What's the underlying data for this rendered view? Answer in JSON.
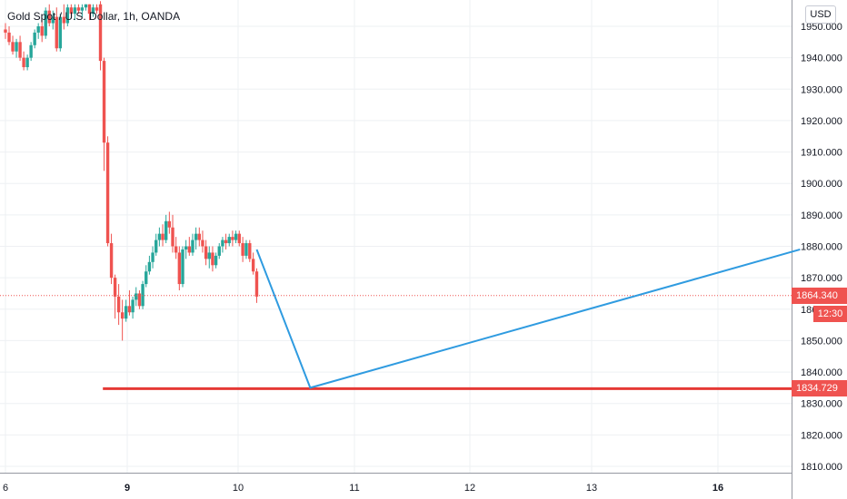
{
  "header": {
    "title": "Gold Spot / U.S. Dollar, 1h, OANDA",
    "currency": "USD"
  },
  "badges": {
    "current_price": "1864.340",
    "countdown": "12:30",
    "support_price": "1834.729"
  },
  "colors": {
    "up": "#26a69a",
    "down": "#ef5350",
    "trend_line": "#2f9be0",
    "support_line": "#e53935",
    "grid": "#eef0f3"
  },
  "chart_data": {
    "type": "candlestick",
    "symbol": "XAUUSD",
    "timeframe": "1h",
    "ylim": [
      1807,
      1958
    ],
    "y_ticks": [
      1810,
      1820,
      1830,
      1840,
      1850,
      1860,
      1870,
      1880,
      1890,
      1900,
      1910,
      1920,
      1930,
      1940,
      1950
    ],
    "x_ticks": [
      {
        "label": "6",
        "day": 0,
        "bold": false
      },
      {
        "label": "9",
        "day": 1,
        "bold": true
      },
      {
        "label": "10",
        "day": 2,
        "bold": false
      },
      {
        "label": "11",
        "day": 3,
        "bold": false
      },
      {
        "label": "12",
        "day": 4,
        "bold": false
      },
      {
        "label": "13",
        "day": 5,
        "bold": false
      },
      {
        "label": "16",
        "day": 6,
        "bold": true
      }
    ],
    "xlim_days": [
      -0.05,
      6.65
    ],
    "current_price": 1864.34,
    "candles": [
      [
        0.0,
        1949,
        1951,
        1946,
        1948
      ],
      [
        0.03,
        1948,
        1950,
        1944,
        1945
      ],
      [
        0.06,
        1945,
        1947,
        1941,
        1942
      ],
      [
        0.09,
        1942,
        1946,
        1940,
        1945
      ],
      [
        0.12,
        1945,
        1947,
        1939,
        1940
      ],
      [
        0.15,
        1940,
        1942,
        1936,
        1937
      ],
      [
        0.18,
        1937,
        1941,
        1936,
        1940
      ],
      [
        0.21,
        1940,
        1945,
        1939,
        1944
      ],
      [
        0.24,
        1944,
        1949,
        1943,
        1948
      ],
      [
        0.27,
        1948,
        1951,
        1946,
        1950
      ],
      [
        0.3,
        1950,
        1952,
        1945,
        1947
      ],
      [
        0.33,
        1947,
        1956,
        1946,
        1955
      ],
      [
        0.36,
        1955,
        1957,
        1950,
        1951
      ],
      [
        0.39,
        1951,
        1955,
        1949,
        1953
      ],
      [
        0.42,
        1953,
        1956,
        1942,
        1943
      ],
      [
        0.45,
        1943,
        1954,
        1942,
        1953
      ],
      [
        0.48,
        1953,
        1957,
        1949,
        1951
      ],
      [
        0.51,
        1951,
        1957,
        1950,
        1956
      ],
      [
        0.54,
        1956,
        1957,
        1953,
        1954
      ],
      [
        0.57,
        1954,
        1957,
        1952,
        1956
      ],
      [
        0.6,
        1956,
        1957,
        1954,
        1955
      ],
      [
        0.63,
        1955,
        1957,
        1953,
        1956
      ],
      [
        0.66,
        1956,
        1957,
        1955,
        1957
      ],
      [
        0.69,
        1957,
        1957,
        1952,
        1954
      ],
      [
        0.72,
        1954,
        1957,
        1953,
        1956
      ],
      [
        0.75,
        1956,
        1957,
        1954,
        1955
      ],
      [
        0.78,
        1957,
        1958,
        1936,
        1939
      ],
      [
        0.81,
        1939,
        1940,
        1904,
        1913
      ],
      [
        0.84,
        1913,
        1915,
        1880,
        1881
      ],
      [
        0.87,
        1881,
        1884,
        1868,
        1870
      ],
      [
        0.9,
        1870,
        1871,
        1857,
        1864
      ],
      [
        0.93,
        1864,
        1868,
        1855,
        1859
      ],
      [
        0.96,
        1859,
        1863,
        1850,
        1857
      ],
      [
        0.99,
        1857,
        1863,
        1856,
        1861
      ],
      [
        1.02,
        1861,
        1866,
        1858,
        1859
      ],
      [
        1.05,
        1859,
        1864,
        1857,
        1863
      ],
      [
        1.08,
        1863,
        1867,
        1861,
        1865
      ],
      [
        1.11,
        1865,
        1866,
        1860,
        1861
      ],
      [
        1.14,
        1861,
        1869,
        1860,
        1868
      ],
      [
        1.17,
        1868,
        1874,
        1867,
        1872
      ],
      [
        1.2,
        1872,
        1877,
        1871,
        1875
      ],
      [
        1.23,
        1875,
        1880,
        1873,
        1878
      ],
      [
        1.26,
        1878,
        1884,
        1877,
        1882
      ],
      [
        1.29,
        1882,
        1886,
        1880,
        1884
      ],
      [
        1.32,
        1884,
        1887,
        1880,
        1882
      ],
      [
        1.35,
        1882,
        1890,
        1881,
        1888
      ],
      [
        1.38,
        1888,
        1891,
        1884,
        1886
      ],
      [
        1.41,
        1886,
        1890,
        1878,
        1880
      ],
      [
        1.44,
        1880,
        1883,
        1876,
        1878
      ],
      [
        1.47,
        1878,
        1880,
        1866,
        1868
      ],
      [
        1.5,
        1868,
        1880,
        1867,
        1879
      ],
      [
        1.53,
        1879,
        1882,
        1876,
        1880
      ],
      [
        1.56,
        1880,
        1883,
        1877,
        1878
      ],
      [
        1.59,
        1878,
        1884,
        1877,
        1882
      ],
      [
        1.62,
        1882,
        1886,
        1879,
        1884
      ],
      [
        1.65,
        1884,
        1886,
        1880,
        1882
      ],
      [
        1.68,
        1882,
        1885,
        1878,
        1880
      ],
      [
        1.71,
        1880,
        1882,
        1874,
        1876
      ],
      [
        1.74,
        1876,
        1880,
        1873,
        1878
      ],
      [
        1.77,
        1878,
        1880,
        1872,
        1874
      ],
      [
        1.8,
        1874,
        1878,
        1873,
        1877
      ],
      [
        1.83,
        1877,
        1881,
        1876,
        1880
      ],
      [
        1.86,
        1880,
        1883,
        1878,
        1882
      ],
      [
        1.89,
        1882,
        1884,
        1879,
        1881
      ],
      [
        1.92,
        1881,
        1884,
        1880,
        1883
      ],
      [
        1.95,
        1883,
        1885,
        1880,
        1882
      ],
      [
        1.98,
        1882,
        1885,
        1881,
        1884
      ],
      [
        2.01,
        1884,
        1885,
        1880,
        1881
      ],
      [
        2.04,
        1881,
        1883,
        1875,
        1877
      ],
      [
        2.07,
        1877,
        1882,
        1876,
        1881
      ],
      [
        2.1,
        1881,
        1882,
        1875,
        1876
      ],
      [
        2.13,
        1876,
        1878,
        1871,
        1872
      ],
      [
        2.16,
        1872,
        1873,
        1862,
        1864
      ]
    ],
    "trend_line": [
      [
        2.16,
        1879
      ],
      [
        2.62,
        1835
      ],
      [
        6.65,
        1879
      ]
    ],
    "support_level": 1834.729,
    "support_x_start": 0.8
  }
}
